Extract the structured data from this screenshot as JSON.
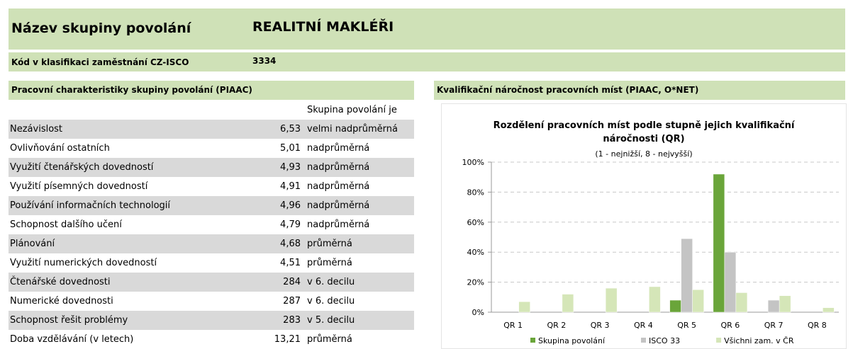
{
  "header": {
    "group_label": "Název skupiny povolání",
    "group_name": "REALITNÍ MAKLÉŘI",
    "code_label": "Kód v klasifikaci zaměstnání CZ-ISCO",
    "code": "3334"
  },
  "table": {
    "title": "Pracovní charakteristiky skupiny povolání (PIAAC)",
    "column_header": "Skupina povolání je",
    "rows": [
      [
        "Nezávislost",
        "6,53",
        "velmi nadprůměrná"
      ],
      [
        "Ovlivňování ostatních",
        "5,01",
        "nadprůměrná"
      ],
      [
        "Využití čtenářských dovedností",
        "4,93",
        "nadprůměrná"
      ],
      [
        "Využití písemných dovedností",
        "4,91",
        "nadprůměrná"
      ],
      [
        "Používání informačních technologií",
        "4,96",
        "nadprůměrná"
      ],
      [
        "Schopnost dalšího učení",
        "4,79",
        "nadprůměrná"
      ],
      [
        "Plánování",
        "4,68",
        "průměrná"
      ],
      [
        "Využití numerických dovedností",
        "4,51",
        "průměrná"
      ],
      [
        "Čtenářské dovednosti",
        "284",
        "v 6. decilu"
      ],
      [
        "Numerické dovednosti",
        "287",
        "v 6. decilu"
      ],
      [
        "Schopnost řešit problémy",
        "283",
        "v 5. decilu"
      ],
      [
        "Doba vzdělávání (v letech)",
        "13,21",
        "průměrná"
      ]
    ]
  },
  "chart_section_title": "Kvalifikační náročnost pracovních míst (PIAAC, O*NET)",
  "chart_data": {
    "type": "bar",
    "title": "Rozdělení pracovních míst podle stupně jejich kvalifikační náročnosti (QR)",
    "subtitle": "(1 - nejnižší, 8 - nejvyšší)",
    "categories": [
      "QR 1",
      "QR 2",
      "QR 3",
      "QR 4",
      "QR 5",
      "QR 6",
      "QR 7",
      "QR 8"
    ],
    "series": [
      {
        "name": "Skupina povolání",
        "color": "#6aa53a",
        "values": [
          0,
          0,
          0,
          0,
          8,
          92,
          0,
          0
        ]
      },
      {
        "name": "ISCO 33",
        "color": "#c4c4c4",
        "values": [
          0,
          0,
          0,
          0,
          49,
          40,
          8,
          0
        ]
      },
      {
        "name": "Všichni zam. v ČR",
        "color": "#d5e6b8",
        "values": [
          7,
          12,
          16,
          17,
          15,
          13,
          11,
          3
        ]
      }
    ],
    "ylim": [
      0,
      100
    ],
    "yticks": [
      {
        "value": 0,
        "label": "0%"
      },
      {
        "value": 20,
        "label": "20%"
      },
      {
        "value": 40,
        "label": "40%"
      },
      {
        "value": 60,
        "label": "60%"
      },
      {
        "value": 80,
        "label": "80%"
      },
      {
        "value": 100,
        "label": "100%"
      }
    ],
    "grid": true
  }
}
